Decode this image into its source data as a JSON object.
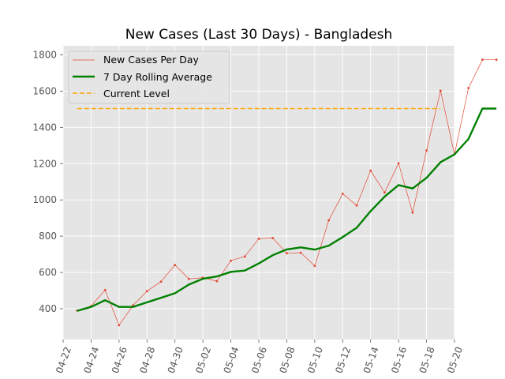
{
  "chart_data": {
    "type": "line",
    "title": "New Cases (Last 30 Days) - Bangladesh",
    "xlabel": "",
    "ylabel": "",
    "x": [
      "04-23",
      "04-24",
      "04-25",
      "04-26",
      "04-27",
      "04-28",
      "04-29",
      "04-30",
      "05-01",
      "05-02",
      "05-03",
      "05-04",
      "05-05",
      "05-06",
      "05-07",
      "05-08",
      "05-09",
      "05-10",
      "05-11",
      "05-12",
      "05-13",
      "05-14",
      "05-15",
      "05-16",
      "05-17",
      "05-18",
      "05-19",
      "05-20",
      "05-21",
      "05-22",
      "05-23"
    ],
    "xticks": [
      "04-22",
      "04-24",
      "04-26",
      "04-28",
      "04-30",
      "05-02",
      "05-04",
      "05-06",
      "05-08",
      "05-10",
      "05-12",
      "05-14",
      "05-16",
      "05-18",
      "05-20"
    ],
    "xlim": [
      "04-22",
      "05-20"
    ],
    "ylim": [
      230,
      1850
    ],
    "yticks": [
      400,
      600,
      800,
      1000,
      1200,
      1400,
      1600,
      1800
    ],
    "grid": true,
    "legend_position": "top-left",
    "series": [
      {
        "name": "New Cases Per Day",
        "color": "#e24a33",
        "style": "thin-line-markers",
        "x": [
          "04-23",
          "04-24",
          "04-25",
          "04-26",
          "04-27",
          "04-28",
          "04-29",
          "04-30",
          "05-01",
          "05-02",
          "05-03",
          "05-04",
          "05-05",
          "05-06",
          "05-07",
          "05-08",
          "05-09",
          "05-10",
          "05-11",
          "05-12",
          "05-13",
          "05-14",
          "05-15",
          "05-16",
          "05-17",
          "05-18",
          "05-19",
          "05-20",
          "05-21",
          "05-22",
          "05-23"
        ],
        "values": [
          390,
          414,
          503,
          309,
          418,
          497,
          549,
          641,
          564,
          571,
          552,
          665,
          688,
          786,
          790,
          706,
          709,
          636,
          887,
          1034,
          969,
          1162,
          1041,
          1202,
          930,
          1273,
          1602,
          1251,
          1617,
          1773,
          1773
        ]
      },
      {
        "name": "7 Day Rolling Average",
        "color": "#008000",
        "style": "thick-line",
        "x": [
          "04-23",
          "04-24",
          "04-25",
          "04-26",
          "04-27",
          "04-28",
          "04-29",
          "04-30",
          "05-01",
          "05-02",
          "05-03",
          "05-04",
          "05-05",
          "05-06",
          "05-07",
          "05-08",
          "05-09",
          "05-10",
          "05-11",
          "05-12",
          "05-13",
          "05-14",
          "05-15",
          "05-16",
          "05-17",
          "05-18",
          "05-19",
          "05-20",
          "05-21",
          "05-22",
          "05-23"
        ],
        "values": [
          388,
          410,
          447,
          410,
          410,
          435,
          460,
          485,
          533,
          565,
          578,
          603,
          610,
          650,
          695,
          727,
          738,
          726,
          748,
          795,
          846,
          938,
          1018,
          1082,
          1063,
          1122,
          1208,
          1251,
          1336,
          1504,
          1504
        ]
      },
      {
        "name": "Current Level",
        "color": "#ffa500",
        "style": "dashed",
        "x": [
          "04-23",
          "05-19"
        ],
        "values": [
          1504,
          1504
        ]
      }
    ]
  }
}
